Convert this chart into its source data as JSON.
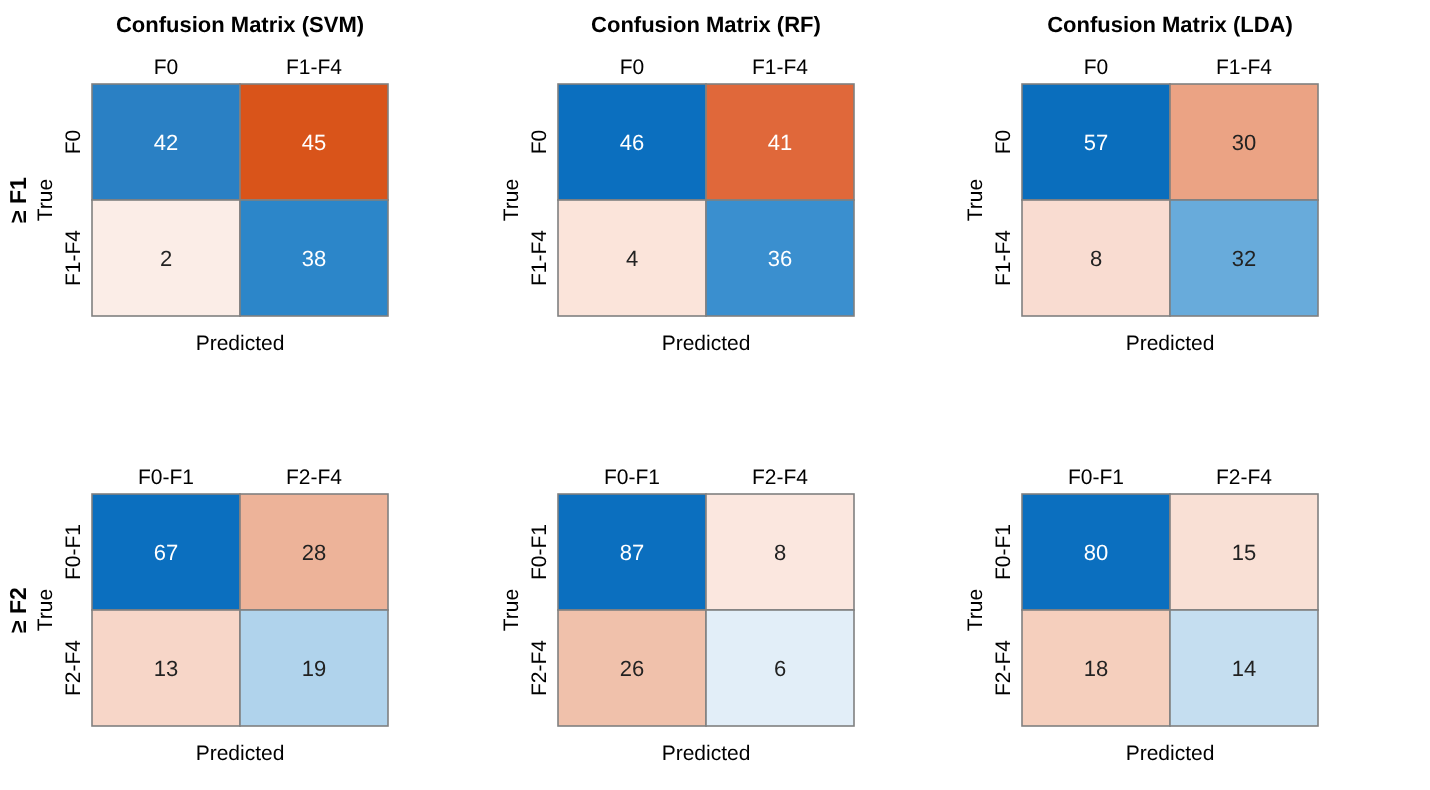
{
  "chart_data": [
    {
      "type": "heatmap",
      "data_labels": true,
      "title": "Confusion Matrix (SVM)",
      "xlabel": "Predicted",
      "ylabel": "True",
      "annotations": [
        "≥ F1"
      ],
      "categories": [
        "F0",
        "F1-F4"
      ],
      "y_categories": [
        "F0",
        "F1-F4"
      ],
      "cells": [
        [
          42,
          45
        ],
        [
          2,
          38
        ]
      ],
      "colors": [
        [
          "#2a80c4",
          "#d9541a"
        ],
        [
          "#fbede7",
          "#2c86c9"
        ]
      ]
    },
    {
      "type": "heatmap",
      "data_labels": true,
      "title": "Confusion Matrix (RF)",
      "xlabel": "Predicted",
      "ylabel": "True",
      "categories": [
        "F0",
        "F1-F4"
      ],
      "y_categories": [
        "F0",
        "F1-F4"
      ],
      "cells": [
        [
          46,
          41
        ],
        [
          4,
          36
        ]
      ],
      "colors": [
        [
          "#0b6fbf",
          "#e0683a"
        ],
        [
          "#fbe4da",
          "#3a8fcf"
        ]
      ]
    },
    {
      "type": "heatmap",
      "data_labels": true,
      "title": "Confusion Matrix (LDA)",
      "xlabel": "Predicted",
      "ylabel": "True",
      "categories": [
        "F0",
        "F1-F4"
      ],
      "y_categories": [
        "F0",
        "F1-F4"
      ],
      "cells": [
        [
          57,
          30
        ],
        [
          8,
          32
        ]
      ],
      "colors": [
        [
          "#0a6ebd",
          "#eba384"
        ],
        [
          "#f9dcd1",
          "#68abdb"
        ]
      ]
    },
    {
      "type": "heatmap",
      "data_labels": true,
      "xlabel": "Predicted",
      "ylabel": "True",
      "annotations": [
        "≥ F2"
      ],
      "categories": [
        "F0-F1",
        "F2-F4"
      ],
      "y_categories": [
        "F0-F1",
        "F2-F4"
      ],
      "cells": [
        [
          67,
          28
        ],
        [
          13,
          19
        ]
      ],
      "colors": [
        [
          "#0b6fbf",
          "#edb399"
        ],
        [
          "#f7d6c8",
          "#b0d3ec"
        ]
      ]
    },
    {
      "type": "heatmap",
      "data_labels": true,
      "xlabel": "Predicted",
      "ylabel": "True",
      "categories": [
        "F0-F1",
        "F2-F4"
      ],
      "y_categories": [
        "F0-F1",
        "F2-F4"
      ],
      "cells": [
        [
          87,
          8
        ],
        [
          26,
          6
        ]
      ],
      "colors": [
        [
          "#0b6fbf",
          "#fbe7df"
        ],
        [
          "#f0c1ab",
          "#e2eef8"
        ]
      ]
    },
    {
      "type": "heatmap",
      "data_labels": true,
      "xlabel": "Predicted",
      "ylabel": "True",
      "categories": [
        "F0-F1",
        "F2-F4"
      ],
      "y_categories": [
        "F0-F1",
        "F2-F4"
      ],
      "cells": [
        [
          80,
          15
        ],
        [
          18,
          14
        ]
      ],
      "colors": [
        [
          "#0b6fbf",
          "#f9e0d5"
        ],
        [
          "#f5cfbd",
          "#c5def0"
        ]
      ]
    }
  ]
}
